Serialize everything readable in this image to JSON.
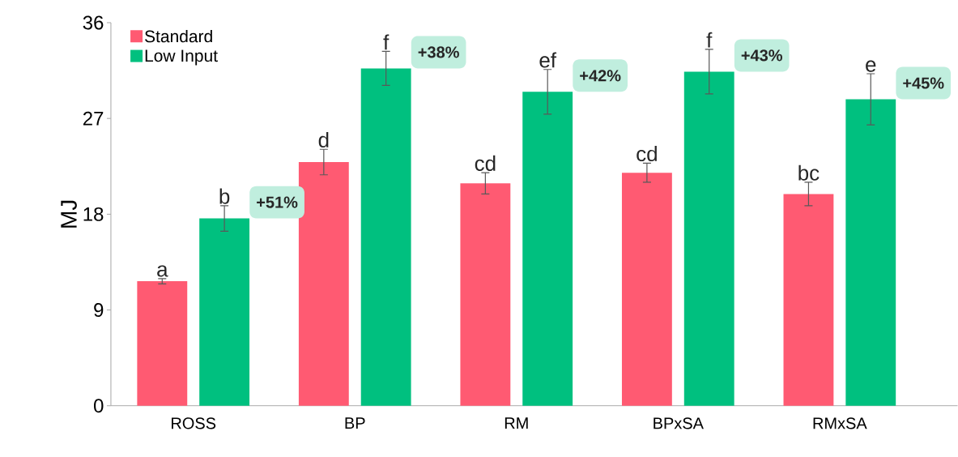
{
  "chart_data": {
    "type": "bar",
    "ylabel": "MJ",
    "categories": [
      "ROSS",
      "BP",
      "RM",
      "BPxSA",
      "RMxSA"
    ],
    "series": [
      {
        "name": "Standard",
        "color": "#ff5a72",
        "values": [
          11.7,
          22.9,
          20.9,
          21.9,
          19.9
        ],
        "errors": [
          0.25,
          1.2,
          1.0,
          0.9,
          1.1
        ]
      },
      {
        "name": "Low Input",
        "color": "#00c07f",
        "values": [
          17.6,
          31.7,
          29.5,
          31.4,
          28.8
        ],
        "errors": [
          1.2,
          1.6,
          2.1,
          2.1,
          2.4
        ]
      }
    ],
    "ylim": [
      0,
      36
    ],
    "yticks": [
      0,
      9,
      18,
      27,
      36
    ],
    "legend": "top left",
    "annotations": [
      "a",
      "b",
      "d",
      "f",
      "cd",
      "ef",
      "cd",
      "f",
      "bc",
      "e",
      "+51%",
      "+38%",
      "+42%",
      "+43%",
      "+45%"
    ]
  }
}
